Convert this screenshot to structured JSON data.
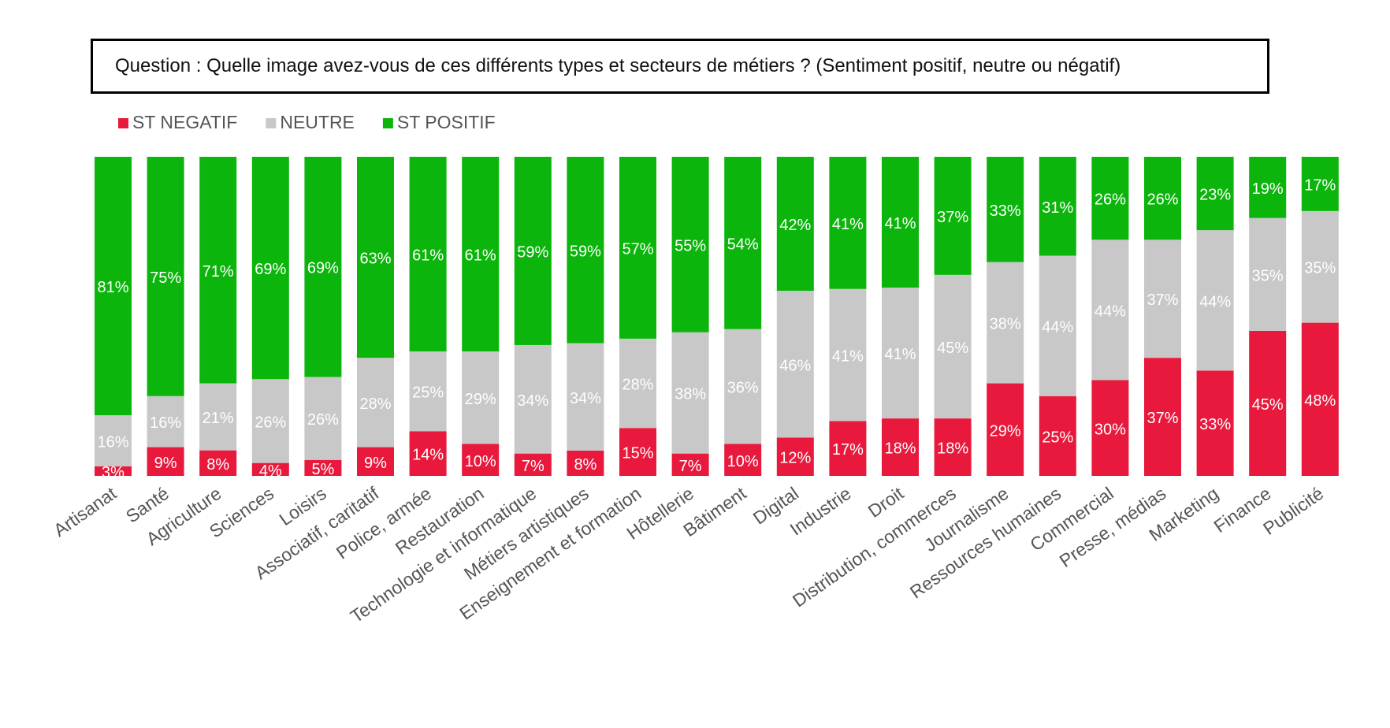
{
  "question": "Question : Quelle image avez-vous de ces différents types et secteurs de métiers ? (Sentiment positif, neutre ou négatif)",
  "chart_data": {
    "type": "bar",
    "stacked": true,
    "normalized_percent": true,
    "title": "Question : Quelle image avez-vous de ces différents types et secteurs de métiers ? (Sentiment positif, neutre ou négatif)",
    "legend_position": "top-left",
    "categories": [
      "Artisanat",
      "Santé",
      "Agriculture",
      "Sciences",
      "Loisirs",
      "Associatif, caritatif",
      "Police, armée",
      "Restauration",
      "Technologie et informatique",
      "Métiers artistiques",
      "Enseignement et formation",
      "Hôtellerie",
      "Bâtiment",
      "Digital",
      "Industrie",
      "Droit",
      "Distribution, commerces",
      "Journalisme",
      "Ressources humaines",
      "Commercial",
      "Presse, médias",
      "Marketing",
      "Finance",
      "Publicité"
    ],
    "series": [
      {
        "name": "ST NEGATIF",
        "color": "#e8193c",
        "values": [
          3,
          9,
          8,
          4,
          5,
          9,
          14,
          10,
          7,
          8,
          15,
          7,
          10,
          12,
          17,
          18,
          18,
          29,
          25,
          30,
          37,
          33,
          45,
          48
        ]
      },
      {
        "name": "NEUTRE",
        "color": "#c8c8c8",
        "values": [
          16,
          16,
          21,
          26,
          26,
          28,
          25,
          29,
          34,
          34,
          28,
          38,
          36,
          46,
          41,
          41,
          45,
          38,
          44,
          44,
          37,
          44,
          35,
          35
        ]
      },
      {
        "name": "ST POSITIF",
        "color": "#0bb50b",
        "values": [
          81,
          75,
          71,
          69,
          69,
          63,
          61,
          61,
          59,
          59,
          57,
          55,
          54,
          42,
          41,
          41,
          37,
          33,
          31,
          26,
          26,
          23,
          19,
          17
        ]
      }
    ],
    "value_suffix": "%"
  }
}
